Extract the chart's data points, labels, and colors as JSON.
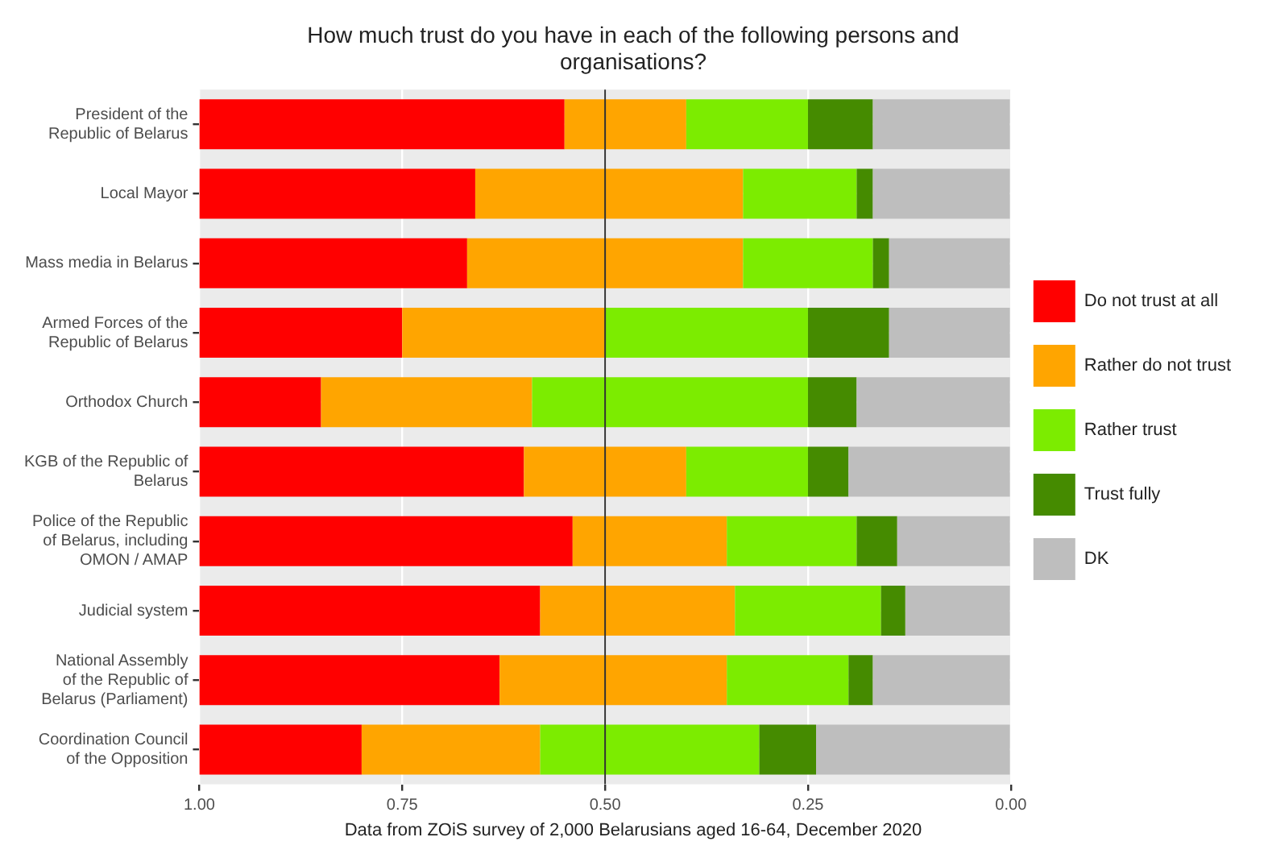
{
  "chart_data": {
    "type": "bar",
    "orientation": "horizontal",
    "stacked": true,
    "title": "How much trust do you have in each of the following persons and\norganisations?",
    "categories": [
      "President of the\nRepublic of Belarus",
      "Local Mayor",
      "Mass media in Belarus",
      "Armed Forces of the\nRepublic of Belarus",
      "Orthodox Church",
      "KGB of the Republic of\nBelarus",
      "Police of the Republic\nof Belarus, including\nOMON / AMAP",
      "Judicial system",
      "National Assembly\nof the Republic of\nBelarus (Parliament)",
      "Coordination Council\nof the Opposition"
    ],
    "series": [
      {
        "name": "DK",
        "color": "#bebebe",
        "values": [
          0.17,
          0.17,
          0.15,
          0.15,
          0.19,
          0.2,
          0.14,
          0.13,
          0.17,
          0.24
        ]
      },
      {
        "name": "Trust fully",
        "color": "#458b00",
        "values": [
          0.08,
          0.02,
          0.02,
          0.1,
          0.06,
          0.05,
          0.05,
          0.03,
          0.03,
          0.07
        ]
      },
      {
        "name": "Rather trust",
        "color": "#7cec00",
        "values": [
          0.15,
          0.14,
          0.16,
          0.25,
          0.34,
          0.15,
          0.16,
          0.18,
          0.15,
          0.27
        ]
      },
      {
        "name": "Rather do not trust",
        "color": "#ffa500",
        "values": [
          0.15,
          0.33,
          0.34,
          0.25,
          0.26,
          0.2,
          0.19,
          0.24,
          0.28,
          0.22
        ]
      },
      {
        "name": "Do not trust at all",
        "color": "#ff0000",
        "values": [
          0.45,
          0.34,
          0.33,
          0.25,
          0.15,
          0.4,
          0.46,
          0.42,
          0.37,
          0.2
        ]
      }
    ],
    "xlim": [
      1,
      0
    ],
    "xticks": [
      {
        "value": 1,
        "label": "1.00"
      },
      {
        "value": 0.75,
        "label": "0.75"
      },
      {
        "value": 0.5,
        "label": "0.50"
      },
      {
        "value": 0.25,
        "label": "0.25"
      },
      {
        "value": 0,
        "label": "0.00"
      }
    ],
    "ref_lines": [
      {
        "axis": "x",
        "value": 0.5,
        "color": "#333333"
      }
    ],
    "grid": true,
    "legend": "right",
    "annotations": [
      "Data from ZOiS survey of 2,000 Belarusians aged 16-64, December 2020"
    ]
  }
}
